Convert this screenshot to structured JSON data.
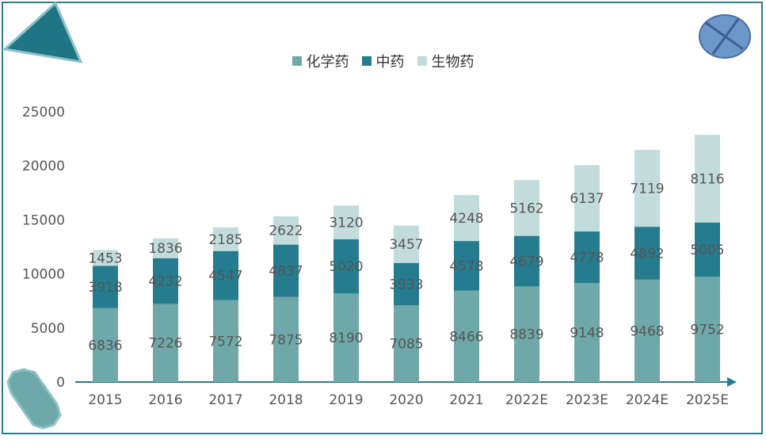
{
  "colors": {
    "chemical": "#6fa8a8",
    "tcm": "#257c8e",
    "bio": "#c2dcdc",
    "axis": "#257c8e",
    "frame": "#2a7f8a"
  },
  "decor_icons": [
    "triangle-icon",
    "circle-cross-icon",
    "octagon-icon"
  ],
  "chart_data": {
    "type": "bar",
    "stacked": true,
    "categories": [
      "2015",
      "2016",
      "2017",
      "2018",
      "2019",
      "2020",
      "2021",
      "2022E",
      "2023E",
      "2024E",
      "2025E"
    ],
    "series": [
      {
        "name": "化学药",
        "values": [
          6836,
          7226,
          7572,
          7875,
          8190,
          7085,
          8466,
          8839,
          9148,
          9468,
          9752
        ]
      },
      {
        "name": "中药",
        "values": [
          3918,
          4232,
          4547,
          4837,
          5020,
          3933,
          4578,
          4679,
          4778,
          4892,
          5005
        ]
      },
      {
        "name": "生物药",
        "values": [
          1453,
          1836,
          2185,
          2622,
          3120,
          3457,
          4248,
          5162,
          6137,
          7119,
          8116
        ]
      }
    ],
    "y_ticks": [
      "0",
      "5000",
      "10000",
      "15000",
      "20000",
      "25000"
    ],
    "ylim": [
      0,
      25000
    ],
    "grid": false,
    "legend_position": "top-center"
  }
}
